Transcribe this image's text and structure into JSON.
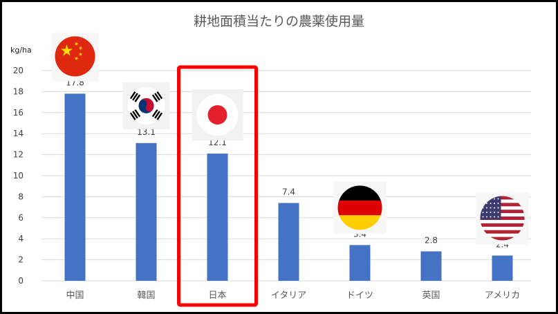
{
  "chart_data": {
    "type": "bar",
    "title": "耕地面積当たりの農薬使用量",
    "ylabel": "kg/ha",
    "categories": [
      "中国",
      "韓国",
      "日本",
      "イタリア",
      "ドイツ",
      "英国",
      "アメリカ"
    ],
    "values": [
      17.8,
      13.1,
      12.1,
      7.4,
      3.4,
      2.8,
      2.4
    ],
    "data_labels": [
      "17.8",
      "13.1",
      "12.1",
      "7.4",
      "3.4",
      "2.8",
      "2.4"
    ],
    "ylim": [
      0,
      20
    ],
    "yticks": [
      0,
      2,
      4,
      6,
      8,
      10,
      12,
      14,
      16,
      18,
      20
    ],
    "grid": true,
    "legend": "none",
    "highlighted_category": "日本",
    "flags": [
      "china-flag",
      "korea-flag",
      "japan-flag",
      null,
      "germany-flag",
      null,
      "usa-flag"
    ]
  },
  "colors": {
    "bar": "#4472c4",
    "grid": "#d9d9d9",
    "highlight_box": "#ff0000",
    "frame": "#000000"
  }
}
